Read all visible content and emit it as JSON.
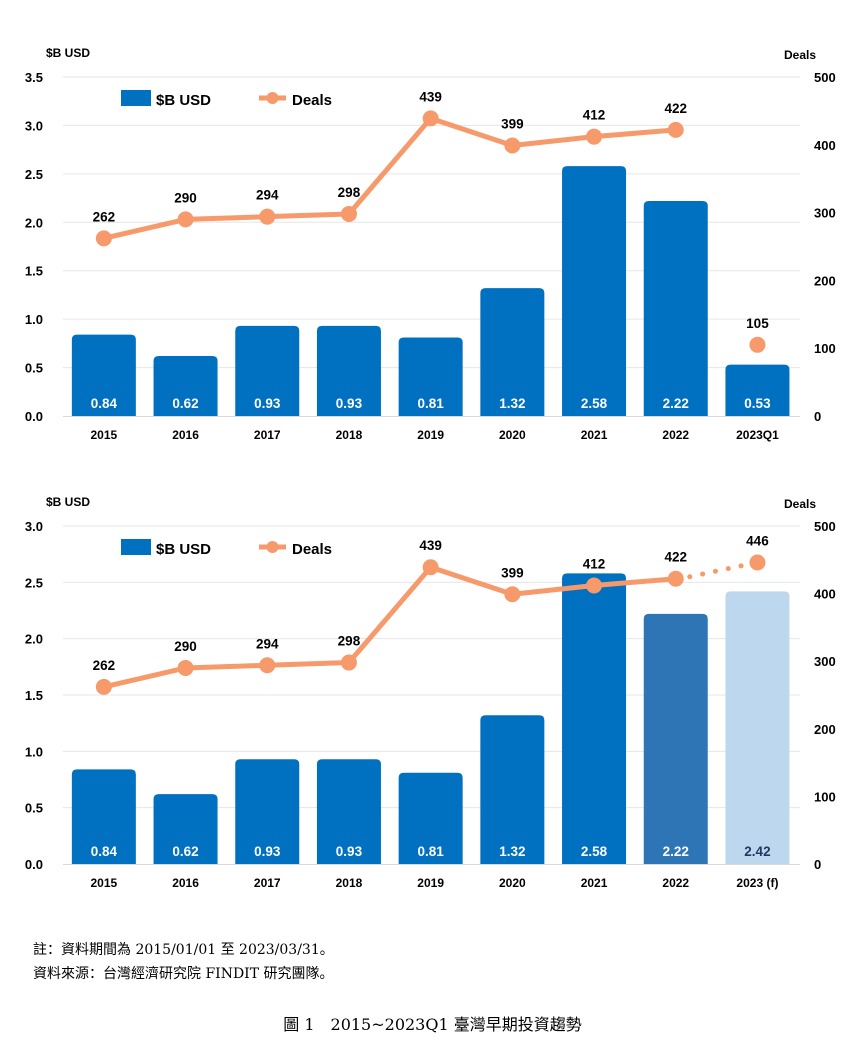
{
  "chart_data": [
    {
      "type": "bar+line",
      "y_left_unit": "$B USD",
      "y_right_unit": "Deals",
      "ylim_left": [
        0,
        3.5
      ],
      "yticks_left": [
        "0.0",
        "0.5",
        "1.0",
        "1.5",
        "2.0",
        "2.5",
        "3.0",
        "3.5"
      ],
      "ylim_right": [
        0,
        500
      ],
      "yticks_right": [
        "0",
        "100",
        "200",
        "300",
        "400",
        "500"
      ],
      "categories": [
        "2015",
        "2016",
        "2017",
        "2018",
        "2019",
        "2020",
        "2021",
        "2022",
        "2023Q1"
      ],
      "bar_values": [
        0.84,
        0.62,
        0.93,
        0.93,
        0.81,
        1.32,
        2.58,
        2.22,
        0.53
      ],
      "bar_labels": [
        "0.84",
        "0.62",
        "0.93",
        "0.93",
        "0.81",
        "1.32",
        "2.58",
        "2.22",
        "0.53"
      ],
      "bar_colors": [
        "#0070c0",
        "#0070c0",
        "#0070c0",
        "#0070c0",
        "#0070c0",
        "#0070c0",
        "#0070c0",
        "#0070c0",
        "#0070c0"
      ],
      "bar_label_colors": [
        "#ffffff",
        "#ffffff",
        "#ffffff",
        "#ffffff",
        "#ffffff",
        "#ffffff",
        "#ffffff",
        "#ffffff",
        "#ffffff"
      ],
      "deals": [
        262,
        290,
        294,
        298,
        439,
        399,
        412,
        422,
        105
      ],
      "deal_labels": [
        "262",
        "290",
        "294",
        "298",
        "439",
        "399",
        "412",
        "422",
        "105"
      ],
      "line_points": 8,
      "separate_points": [
        8
      ],
      "dotted_from": null,
      "legend": {
        "bar": "$B USD",
        "line": "Deals"
      },
      "grid": true
    },
    {
      "type": "bar+line",
      "y_left_unit": "$B USD",
      "y_right_unit": "Deals",
      "ylim_left": [
        0,
        3.0
      ],
      "yticks_left": [
        "0.0",
        "0.5",
        "1.0",
        "1.5",
        "2.0",
        "2.5",
        "3.0"
      ],
      "ylim_right": [
        0,
        500
      ],
      "yticks_right": [
        "0",
        "100",
        "200",
        "300",
        "400",
        "500"
      ],
      "categories": [
        "2015",
        "2016",
        "2017",
        "2018",
        "2019",
        "2020",
        "2021",
        "2022",
        "2023 (f)"
      ],
      "bar_values": [
        0.84,
        0.62,
        0.93,
        0.93,
        0.81,
        1.32,
        2.58,
        2.22,
        2.42
      ],
      "bar_labels": [
        "0.84",
        "0.62",
        "0.93",
        "0.93",
        "0.81",
        "1.32",
        "2.58",
        "2.22",
        "2.42"
      ],
      "bar_colors": [
        "#0070c0",
        "#0070c0",
        "#0070c0",
        "#0070c0",
        "#0070c0",
        "#0070c0",
        "#0070c0",
        "#2e75b6",
        "#bdd7ee"
      ],
      "bar_label_colors": [
        "#ffffff",
        "#ffffff",
        "#ffffff",
        "#ffffff",
        "#ffffff",
        "#ffffff",
        "#ffffff",
        "#ffffff",
        "#1f3864"
      ],
      "deals": [
        262,
        290,
        294,
        298,
        439,
        399,
        412,
        422,
        446
      ],
      "deal_labels": [
        "262",
        "290",
        "294",
        "298",
        "439",
        "399",
        "412",
        "422",
        "446"
      ],
      "line_points": 8,
      "separate_points": [],
      "dotted_from": 7,
      "legend": {
        "bar": "$B USD",
        "line": "Deals"
      },
      "grid": true
    }
  ],
  "colors": {
    "bar": "#0070c0",
    "line": "#f79a6b",
    "grid": "#e6e6e6"
  },
  "notes": {
    "line1": "註：資料期間為 2015/01/01 至 2023/03/31。",
    "line2": "資料來源：台灣經濟研究院 FINDIT 研究團隊。"
  },
  "caption": "圖 1　2015~2023Q1 臺灣早期投資趨勢"
}
